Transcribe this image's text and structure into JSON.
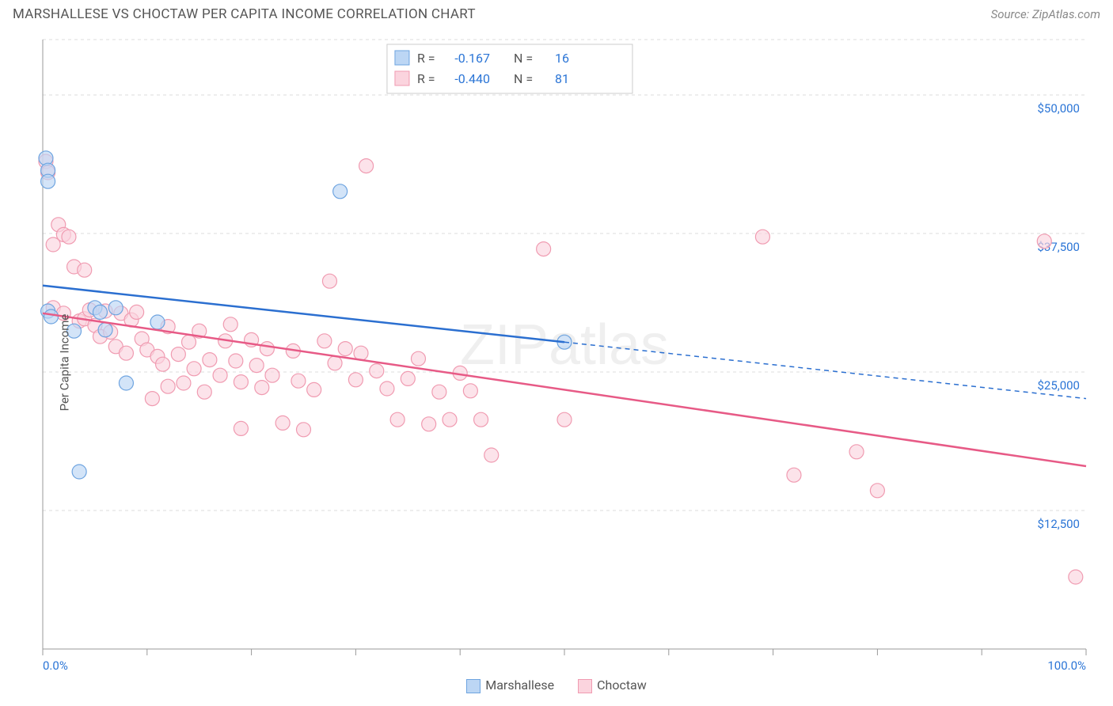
{
  "title": "MARSHALLESE VS CHOCTAW PER CAPITA INCOME CORRELATION CHART",
  "source": "Source: ZipAtlas.com",
  "watermark": "ZIPatlas",
  "ylabel": "Per Capita Income",
  "chart": {
    "type": "scatter",
    "xlim": [
      0,
      100
    ],
    "ylim": [
      0,
      55000
    ],
    "x_ticks": [
      0,
      10,
      20,
      30,
      40,
      50,
      60,
      70,
      80,
      90,
      100
    ],
    "x_tick_labels": {
      "0": "0.0%",
      "100": "100.0%"
    },
    "y_gridlines": [
      12500,
      25000,
      37500,
      50000,
      55000
    ],
    "y_tick_labels": {
      "12500": "$12,500",
      "25000": "$25,000",
      "37500": "$37,500",
      "50000": "$50,000"
    },
    "grid_color": "#dddddd",
    "axis_color": "#999999",
    "background_color": "#ffffff",
    "tick_label_color": "#2b75d6",
    "marker_radius": 9,
    "marker_stroke_width": 1.2,
    "series": [
      {
        "name": "Marshallese",
        "fill": "#bcd6f4",
        "stroke": "#6ea4e0",
        "line_color": "#2b6fd0",
        "R": "-0.167",
        "N": "16",
        "trend": {
          "x1": 0,
          "y1": 32800,
          "x2": 50,
          "y2": 27700,
          "x3": 100,
          "y3": 22600
        },
        "trend_solid_until_x": 50,
        "points": [
          {
            "x": 0.3,
            "y": 44300
          },
          {
            "x": 0.5,
            "y": 43200
          },
          {
            "x": 0.5,
            "y": 42200
          },
          {
            "x": 0.5,
            "y": 30500
          },
          {
            "x": 0.8,
            "y": 30000
          },
          {
            "x": 3.0,
            "y": 28700
          },
          {
            "x": 5.0,
            "y": 30800
          },
          {
            "x": 5.5,
            "y": 30400
          },
          {
            "x": 6.0,
            "y": 28800
          },
          {
            "x": 7.0,
            "y": 30800
          },
          {
            "x": 8.0,
            "y": 24000
          },
          {
            "x": 11.0,
            "y": 29500
          },
          {
            "x": 3.5,
            "y": 16000
          },
          {
            "x": 28.5,
            "y": 41300
          },
          {
            "x": 50.0,
            "y": 27700
          }
        ]
      },
      {
        "name": "Choctaw",
        "fill": "#fbd4de",
        "stroke": "#f09bb1",
        "line_color": "#e75a86",
        "R": "-0.440",
        "N": "81",
        "trend": {
          "x1": 0,
          "y1": 30300,
          "x2": 100,
          "y2": 16500
        },
        "trend_solid_until_x": 100,
        "points": [
          {
            "x": 0.3,
            "y": 44000
          },
          {
            "x": 0.5,
            "y": 43000
          },
          {
            "x": 1.5,
            "y": 38300
          },
          {
            "x": 2.0,
            "y": 37400
          },
          {
            "x": 2.5,
            "y": 37200
          },
          {
            "x": 1.0,
            "y": 36500
          },
          {
            "x": 3.0,
            "y": 34500
          },
          {
            "x": 4.0,
            "y": 34200
          },
          {
            "x": 1.0,
            "y": 30800
          },
          {
            "x": 2.0,
            "y": 30300
          },
          {
            "x": 3.5,
            "y": 29600
          },
          {
            "x": 4.0,
            "y": 29800
          },
          {
            "x": 4.5,
            "y": 30600
          },
          {
            "x": 5.0,
            "y": 29200
          },
          {
            "x": 5.5,
            "y": 28200
          },
          {
            "x": 6.0,
            "y": 30500
          },
          {
            "x": 6.5,
            "y": 28600
          },
          {
            "x": 7.0,
            "y": 27300
          },
          {
            "x": 7.5,
            "y": 30300
          },
          {
            "x": 8.0,
            "y": 26700
          },
          {
            "x": 8.5,
            "y": 29700
          },
          {
            "x": 9.0,
            "y": 30400
          },
          {
            "x": 9.5,
            "y": 28000
          },
          {
            "x": 10.0,
            "y": 27000
          },
          {
            "x": 10.5,
            "y": 22600
          },
          {
            "x": 11.0,
            "y": 26400
          },
          {
            "x": 11.5,
            "y": 25700
          },
          {
            "x": 12.0,
            "y": 29100
          },
          {
            "x": 12.0,
            "y": 23700
          },
          {
            "x": 13.0,
            "y": 26600
          },
          {
            "x": 13.5,
            "y": 24000
          },
          {
            "x": 14.0,
            "y": 27700
          },
          {
            "x": 14.5,
            "y": 25300
          },
          {
            "x": 15.0,
            "y": 28700
          },
          {
            "x": 15.5,
            "y": 23200
          },
          {
            "x": 16.0,
            "y": 26100
          },
          {
            "x": 17.0,
            "y": 24700
          },
          {
            "x": 17.5,
            "y": 27800
          },
          {
            "x": 18.0,
            "y": 29300
          },
          {
            "x": 18.5,
            "y": 26000
          },
          {
            "x": 19.0,
            "y": 24100
          },
          {
            "x": 19.0,
            "y": 19900
          },
          {
            "x": 20.0,
            "y": 27900
          },
          {
            "x": 20.5,
            "y": 25600
          },
          {
            "x": 21.0,
            "y": 23600
          },
          {
            "x": 21.5,
            "y": 27100
          },
          {
            "x": 22.0,
            "y": 24700
          },
          {
            "x": 23.0,
            "y": 20400
          },
          {
            "x": 24.0,
            "y": 26900
          },
          {
            "x": 24.5,
            "y": 24200
          },
          {
            "x": 25.0,
            "y": 19800
          },
          {
            "x": 26.0,
            "y": 23400
          },
          {
            "x": 27.0,
            "y": 27800
          },
          {
            "x": 27.5,
            "y": 33200
          },
          {
            "x": 28.0,
            "y": 25800
          },
          {
            "x": 29.0,
            "y": 27100
          },
          {
            "x": 30.0,
            "y": 24300
          },
          {
            "x": 30.5,
            "y": 26700
          },
          {
            "x": 31.0,
            "y": 43600
          },
          {
            "x": 32.0,
            "y": 25100
          },
          {
            "x": 33.0,
            "y": 23500
          },
          {
            "x": 34.0,
            "y": 20700
          },
          {
            "x": 35.0,
            "y": 24400
          },
          {
            "x": 36.0,
            "y": 26200
          },
          {
            "x": 37.0,
            "y": 20300
          },
          {
            "x": 38.0,
            "y": 23200
          },
          {
            "x": 39.0,
            "y": 20700
          },
          {
            "x": 40.0,
            "y": 24900
          },
          {
            "x": 41.0,
            "y": 23300
          },
          {
            "x": 42.0,
            "y": 20700
          },
          {
            "x": 43.0,
            "y": 17500
          },
          {
            "x": 48.0,
            "y": 36100
          },
          {
            "x": 50.0,
            "y": 20700
          },
          {
            "x": 69.0,
            "y": 37200
          },
          {
            "x": 72.0,
            "y": 15700
          },
          {
            "x": 78.0,
            "y": 17800
          },
          {
            "x": 80.0,
            "y": 14300
          },
          {
            "x": 96.0,
            "y": 36800
          },
          {
            "x": 99.0,
            "y": 6500
          }
        ]
      }
    ]
  },
  "bottom_legend": [
    {
      "label": "Marshallese",
      "fill": "#bcd6f4",
      "stroke": "#6ea4e0"
    },
    {
      "label": "Choctaw",
      "fill": "#fbd4de",
      "stroke": "#f09bb1"
    }
  ],
  "legend_box": {
    "rows": [
      {
        "swatch_fill": "#bcd6f4",
        "swatch_stroke": "#6ea4e0",
        "R_label": "R =",
        "R_val": "-0.167",
        "N_label": "N =",
        "N_val": "16"
      },
      {
        "swatch_fill": "#fbd4de",
        "swatch_stroke": "#f09bb1",
        "R_label": "R =",
        "R_val": "-0.440",
        "N_label": "N =",
        "N_val": "81"
      }
    ]
  }
}
